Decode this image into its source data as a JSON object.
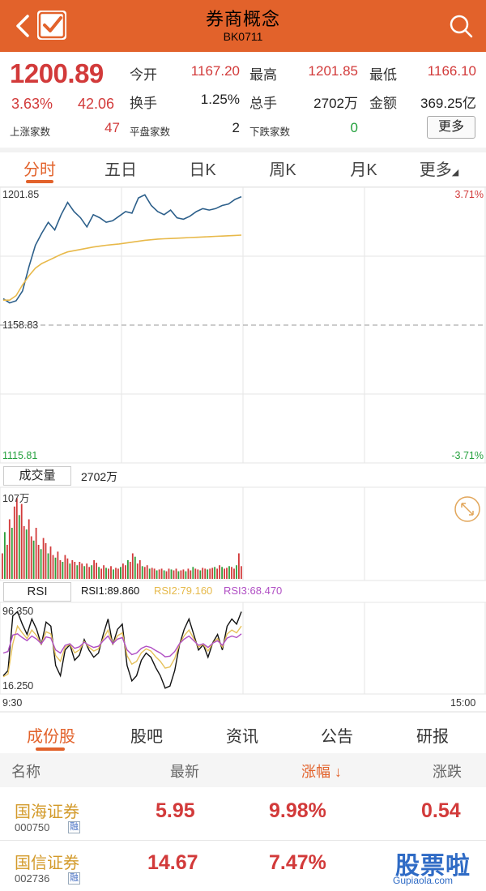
{
  "header": {
    "title": "券商概念",
    "code": "BK0711",
    "bg_color": "#e2622b",
    "icons": [
      "back-arrow-icon",
      "check-icon",
      "search-icon"
    ]
  },
  "quote": {
    "price": "1200.89",
    "change_pct": "3.63%",
    "change": "42.06",
    "open_label": "今开",
    "open": "1167.20",
    "high_label": "最高",
    "high": "1201.85",
    "low_label": "最低",
    "low": "1166.10",
    "turnover_label": "换手",
    "turnover": "1.25%",
    "volume_label": "总手",
    "volume": "2702万",
    "amount_label": "金额",
    "amount": "369.25亿",
    "up_label": "上涨家数",
    "up": "47",
    "flat_label": "平盘家数",
    "flat": "2",
    "down_label": "下跌家数",
    "down": "0",
    "more": "更多"
  },
  "tabs": [
    "分时",
    "五日",
    "日K",
    "周K",
    "月K",
    "更多"
  ],
  "chart": {
    "price_axis": {
      "top": "1201.85",
      "mid": "1158.83",
      "bottom": "1115.81"
    },
    "pct_axis": {
      "top": "3.71%",
      "bottom": "-3.71%"
    },
    "volume_btn": "成交量",
    "volume_value": "2702万",
    "volume_max": "107万",
    "rsi_btn": "RSI",
    "rsi1": "RSI1:89.860",
    "rsi2": "RSI2:79.160",
    "rsi3": "RSI3:68.470",
    "rsi_top": "96.350",
    "rsi_bottom": "16.250",
    "time_start": "9:30",
    "time_end": "15:00"
  },
  "chart_data": {
    "type": "line",
    "series": [
      {
        "values": [
          1167.5,
          1166.1,
          1166.8,
          1170.0,
          1178.0,
          1185.0,
          1189.0,
          1192.5,
          1190.0,
          1195.0,
          1199.0,
          1196.0,
          1194.0,
          1191.0,
          1195.0,
          1194.0,
          1192.5,
          1193.0,
          1194.5,
          1196.0,
          1195.5,
          1200.5,
          1201.5,
          1198.0,
          1196.0,
          1195.0,
          1196.5,
          1194.0,
          1193.5,
          1194.5,
          1196.0,
          1197.0,
          1196.5,
          1197.0,
          1198.0,
          1198.5,
          1200.0,
          1200.89
        ]
      },
      {
        "values": [
          1167.0,
          1167.0,
          1168.5,
          1172.0,
          1175.0,
          1177.5,
          1179.0,
          1180.0,
          1181.0,
          1182.0,
          1182.8,
          1183.2,
          1183.6,
          1184.0,
          1184.4,
          1184.7,
          1185.0,
          1185.2,
          1185.4,
          1185.7,
          1186.0,
          1186.3,
          1186.6,
          1186.8,
          1187.0,
          1187.1,
          1187.2,
          1187.3,
          1187.4,
          1187.5,
          1187.6,
          1187.7,
          1187.8,
          1187.9,
          1188.0,
          1188.1,
          1188.2,
          1188.3
        ]
      }
    ],
    "ylim": [
      1115.81,
      1201.85
    ]
  },
  "tabs_bottom": [
    "成份股",
    "股吧",
    "资讯",
    "公告",
    "研报"
  ],
  "table": {
    "headers": {
      "name": "名称",
      "latest": "最新",
      "pct": "涨幅",
      "change": "涨跌"
    },
    "sort_arrow": "↓",
    "rows": [
      {
        "name": "国海证券",
        "code": "000750",
        "tag": "融",
        "latest": "5.95",
        "pct": "9.98%",
        "change": "0.54"
      },
      {
        "name": "国信证券",
        "code": "002736",
        "tag": "融",
        "latest": "14.67",
        "pct": "7.47%",
        "change": ""
      }
    ]
  },
  "watermark": {
    "text": "股票啦",
    "site": "Gupiaola.com"
  }
}
